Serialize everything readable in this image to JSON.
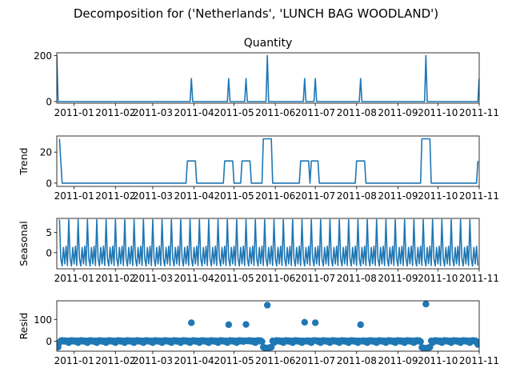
{
  "figure": {
    "title": "Decomposition for ('Netherlands', 'LUNCH BAG WOODLAND')",
    "color": "#1f77b4"
  },
  "chart_data": [
    {
      "type": "line",
      "title": "Quantity",
      "ylabel": "",
      "xlim": [
        "2010-12-19",
        "2011-11-01"
      ],
      "ylim": [
        -7,
        212
      ],
      "yticks": [
        0,
        200
      ],
      "xticks": [
        "2011-01",
        "2011-02",
        "2011-03",
        "2011-04",
        "2011-05",
        "2011-06",
        "2011-07",
        "2011-08",
        "2011-09",
        "2011-10",
        "2011-11"
      ],
      "x": [
        "2010-12-19",
        "2010-12-20",
        "2011-03-29",
        "2011-03-30",
        "2011-03-31",
        "2011-04-26",
        "2011-04-27",
        "2011-04-28",
        "2011-05-09",
        "2011-05-10",
        "2011-05-11",
        "2011-05-25",
        "2011-05-26",
        "2011-05-27",
        "2011-06-22",
        "2011-06-23",
        "2011-06-24",
        "2011-06-30",
        "2011-07-01",
        "2011-07-02",
        "2011-08-03",
        "2011-08-04",
        "2011-08-05",
        "2011-09-21",
        "2011-09-22",
        "2011-09-23",
        "2011-10-31",
        "2011-11-01"
      ],
      "y": [
        200,
        0,
        0,
        100,
        0,
        0,
        100,
        0,
        0,
        100,
        0,
        0,
        200,
        0,
        0,
        100,
        0,
        0,
        100,
        0,
        0,
        100,
        0,
        0,
        200,
        0,
        0,
        100
      ]
    },
    {
      "type": "line",
      "title": "",
      "ylabel": "Trend",
      "xlim": [
        "2010-12-19",
        "2011-11-01"
      ],
      "ylim": [
        -2.1,
        30.4
      ],
      "yticks": [
        0,
        20
      ],
      "xticks": [
        "2011-01",
        "2011-02",
        "2011-03",
        "2011-04",
        "2011-05",
        "2011-06",
        "2011-07",
        "2011-08",
        "2011-09",
        "2011-10",
        "2011-11"
      ],
      "x": [
        "2010-12-21",
        "2010-12-23",
        "2011-03-26",
        "2011-03-27",
        "2011-04-02",
        "2011-04-03",
        "2011-04-23",
        "2011-04-24",
        "2011-04-30",
        "2011-05-01",
        "2011-05-06",
        "2011-05-07",
        "2011-05-13",
        "2011-05-14",
        "2011-05-22",
        "2011-05-23",
        "2011-05-29",
        "2011-05-30",
        "2011-06-19",
        "2011-06-20",
        "2011-06-26",
        "2011-06-27",
        "2011-06-28",
        "2011-07-03",
        "2011-07-04",
        "2011-07-31",
        "2011-08-01",
        "2011-08-07",
        "2011-08-08",
        "2011-09-18",
        "2011-09-19",
        "2011-09-25",
        "2011-09-26",
        "2011-10-30",
        "2011-10-31"
      ],
      "y": [
        28.6,
        0,
        0,
        14.3,
        14.3,
        0,
        0,
        14.3,
        14.3,
        0,
        0,
        14.3,
        14.3,
        0,
        0,
        28.6,
        28.6,
        0,
        0,
        14.3,
        14.3,
        0,
        14.3,
        14.3,
        0,
        0,
        14.3,
        14.3,
        0,
        0,
        28.6,
        28.6,
        0,
        0,
        14.3
      ]
    },
    {
      "type": "line",
      "title": "",
      "ylabel": "Seasonal",
      "xlim": [
        "2010-12-19",
        "2011-11-01"
      ],
      "ylim": [
        -4.0,
        8.5
      ],
      "yticks": [
        0,
        5
      ],
      "xticks": [
        "2011-01",
        "2011-02",
        "2011-03",
        "2011-04",
        "2011-05",
        "2011-06",
        "2011-07",
        "2011-08",
        "2011-09",
        "2011-10",
        "2011-11"
      ],
      "period_days": 7,
      "start": "2010-12-21",
      "end": "2011-10-31",
      "cycle": [
        8.2,
        -1.5,
        -3.3,
        1.3,
        -2.8,
        1.6,
        -3.2
      ]
    },
    {
      "type": "scatter",
      "title": "",
      "ylabel": "Resid",
      "xlim": [
        "2010-12-19",
        "2011-11-01"
      ],
      "ylim": [
        -45,
        185
      ],
      "yticks": [
        0,
        100
      ],
      "xticks": [
        "2011-01",
        "2011-02",
        "2011-03",
        "2011-04",
        "2011-05",
        "2011-06",
        "2011-07",
        "2011-08",
        "2011-09",
        "2011-10",
        "2011-11"
      ],
      "baseline": {
        "start": "2010-12-21",
        "end": "2011-10-31",
        "pattern": [
          -6,
          2,
          4,
          1,
          3,
          -1,
          2
        ]
      },
      "outliers": {
        "x": [
          "2011-03-30",
          "2011-04-27",
          "2011-05-10",
          "2011-05-26",
          "2011-06-23",
          "2011-07-01",
          "2011-08-04",
          "2011-09-22"
        ],
        "y": [
          85,
          76,
          77,
          165,
          87,
          85,
          76,
          170
        ]
      },
      "dips": {
        "x": [
          "2010-12-20",
          "2011-05-23",
          "2011-05-24",
          "2011-05-25",
          "2011-05-27",
          "2011-05-28",
          "2011-05-29",
          "2011-09-19",
          "2011-09-20",
          "2011-09-21",
          "2011-09-23",
          "2011-09-24",
          "2011-09-25",
          "2011-10-31"
        ],
        "y": [
          -26,
          -27,
          -30,
          -30,
          -30,
          -28,
          -27,
          -28,
          -30,
          -31,
          -31,
          -29,
          -27,
          -14
        ]
      }
    }
  ]
}
